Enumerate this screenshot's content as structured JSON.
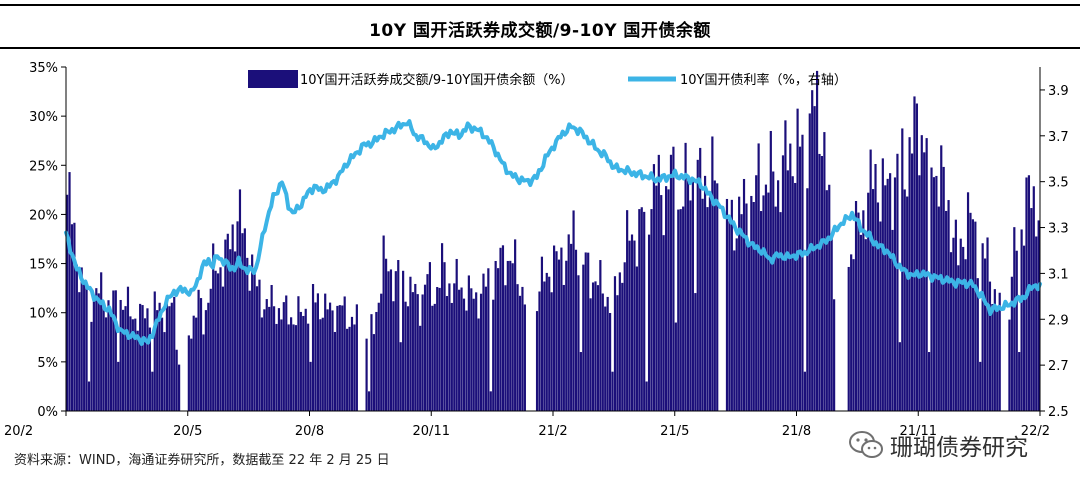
{
  "title": "10Y 国开活跃券成交额/9-10Y 国开债余额",
  "source_note": "资料来源：WIND，海通证券研究所，数据截至 22 年 2 月 25 日",
  "watermark": "珊瑚债券研究",
  "colors": {
    "bar": "#1b0f7a",
    "line": "#3cb4e6"
  },
  "chart_data": {
    "type": "bar+line",
    "title": "10Y 国开活跃券成交额/9-10Y 国开债余额",
    "x_ticks": [
      "20/2",
      "20/5",
      "20/8",
      "20/11",
      "21/2",
      "21/5",
      "21/8",
      "21/11",
      "22/2"
    ],
    "y_left": {
      "ticks": [
        "0%",
        "5%",
        "10%",
        "15%",
        "20%",
        "25%",
        "30%",
        "35%"
      ],
      "range": [
        0,
        35
      ]
    },
    "y_right": {
      "ticks": [
        "2.5",
        "2.7",
        "2.9",
        "3.1",
        "3.3",
        "3.5",
        "3.7",
        "3.9"
      ],
      "range": [
        2.5,
        4.0
      ]
    },
    "legend": {
      "bar": "10Y国开活跃券成交额/9-10Y国开债余额（%）",
      "line": "10Y国开债利率（%，右轴）"
    },
    "bar_series": {
      "name": "10Y国开活跃券成交额/9-10Y国开债余额（%）",
      "axis": "left",
      "knots": [
        [
          0,
          22
        ],
        [
          3,
          18
        ],
        [
          6,
          13
        ],
        [
          10,
          11.5
        ],
        [
          14,
          12
        ],
        [
          18,
          10.5
        ],
        [
          22,
          11.5
        ],
        [
          26,
          10
        ],
        [
          30,
          9.5
        ],
        [
          35,
          10.5
        ],
        [
          40,
          10
        ],
        [
          44,
          10.5
        ],
        [
          46,
          5
        ],
        [
          48,
          2
        ],
        [
          50,
          8
        ],
        [
          54,
          11
        ],
        [
          56,
          9
        ],
        [
          58,
          12
        ],
        [
          60,
          14
        ],
        [
          63,
          15
        ],
        [
          66,
          16
        ],
        [
          68,
          18
        ],
        [
          70,
          21
        ],
        [
          72,
          18
        ],
        [
          74,
          16
        ],
        [
          76,
          15
        ],
        [
          78,
          12
        ],
        [
          82,
          11
        ],
        [
          86,
          10.5
        ],
        [
          90,
          10
        ],
        [
          94,
          9.5
        ],
        [
          97,
          10
        ],
        [
          100,
          11.5
        ],
        [
          104,
          11
        ],
        [
          108,
          10
        ],
        [
          112,
          10.5
        ],
        [
          116,
          9.5
        ],
        [
          120,
          9
        ],
        [
          124,
          8
        ],
        [
          126,
          8.5
        ],
        [
          128,
          12
        ],
        [
          130,
          15
        ],
        [
          134,
          14
        ],
        [
          138,
          13
        ],
        [
          142,
          12
        ],
        [
          145,
          11
        ],
        [
          148,
          13.5
        ],
        [
          150,
          12
        ],
        [
          152,
          12.5
        ],
        [
          154,
          14.5
        ],
        [
          156,
          13.5
        ],
        [
          158,
          12.5
        ],
        [
          161,
          13
        ],
        [
          164,
          12
        ],
        [
          167,
          11.5
        ],
        [
          170,
          12
        ],
        [
          173,
          13
        ],
        [
          176,
          14
        ],
        [
          180,
          16
        ],
        [
          184,
          14.5
        ],
        [
          188,
          12
        ],
        [
          192,
          11
        ],
        [
          195,
          13
        ],
        [
          198,
          14.5
        ],
        [
          201,
          15
        ],
        [
          204,
          16
        ],
        [
          206,
          16
        ],
        [
          208,
          18
        ],
        [
          210,
          17
        ],
        [
          212,
          15
        ],
        [
          215,
          14
        ],
        [
          218,
          13
        ],
        [
          221,
          12
        ],
        [
          224,
          11
        ],
        [
          227,
          14
        ],
        [
          230,
          17
        ],
        [
          233,
          18
        ],
        [
          236,
          19
        ],
        [
          239,
          22
        ],
        [
          242,
          23
        ],
        [
          246,
          22
        ],
        [
          248,
          24
        ],
        [
          252,
          21
        ],
        [
          256,
          24
        ],
        [
          260,
          23
        ],
        [
          264,
          24
        ],
        [
          268,
          22
        ],
        [
          272,
          19
        ],
        [
          276,
          20
        ],
        [
          280,
          21
        ],
        [
          284,
          23
        ],
        [
          288,
          24
        ],
        [
          291,
          23
        ],
        [
          294,
          24.5
        ],
        [
          298,
          27
        ],
        [
          301,
          26
        ],
        [
          304,
          29
        ],
        [
          307,
          30.5
        ],
        [
          310,
          30
        ],
        [
          312,
          23
        ],
        [
          315,
          14
        ],
        [
          318,
          12
        ],
        [
          320,
          15
        ],
        [
          324,
          18
        ],
        [
          328,
          21
        ],
        [
          332,
          24
        ],
        [
          336,
          22
        ],
        [
          340,
          24
        ],
        [
          344,
          25
        ],
        [
          348,
          28
        ],
        [
          350,
          29
        ],
        [
          354,
          27
        ],
        [
          358,
          24
        ],
        [
          362,
          21
        ],
        [
          366,
          15
        ],
        [
          368,
          18
        ],
        [
          370,
          20
        ],
        [
          374,
          17
        ],
        [
          378,
          15
        ],
        [
          381,
          12
        ],
        [
          384,
          10
        ],
        [
          385,
          2
        ],
        [
          388,
          14
        ],
        [
          391,
          18
        ],
        [
          394,
          21
        ],
        [
          397,
          22
        ],
        [
          400,
          20
        ]
      ],
      "gaps": [
        [
          47,
          49
        ],
        [
          120,
          122
        ],
        [
          189,
          192
        ],
        [
          268,
          270
        ],
        [
          316,
          320
        ],
        [
          384,
          386
        ]
      ],
      "dips": [
        [
          9,
          3
        ],
        [
          21,
          5
        ],
        [
          35,
          4
        ],
        [
          100,
          5
        ],
        [
          124,
          2
        ],
        [
          137,
          7
        ],
        [
          174,
          2
        ],
        [
          211,
          6
        ],
        [
          224,
          4
        ],
        [
          238,
          3
        ],
        [
          250,
          9
        ],
        [
          258,
          12
        ],
        [
          303,
          4
        ],
        [
          342,
          7
        ],
        [
          354,
          6
        ],
        [
          375,
          5
        ],
        [
          391,
          6
        ]
      ]
    },
    "line_series": {
      "name": "10Y国开债利率（%，右轴）",
      "axis": "right",
      "knots": [
        [
          0,
          3.27
        ],
        [
          5,
          3.12
        ],
        [
          10,
          3.04
        ],
        [
          15,
          2.98
        ],
        [
          20,
          2.94
        ],
        [
          25,
          2.85
        ],
        [
          30,
          2.83
        ],
        [
          35,
          2.81
        ],
        [
          38,
          2.8
        ],
        [
          42,
          2.88
        ],
        [
          46,
          2.97
        ],
        [
          50,
          3.02
        ],
        [
          55,
          3.03
        ],
        [
          58,
          3.01
        ],
        [
          60,
          3.05
        ],
        [
          64,
          3.14
        ],
        [
          66,
          3.16
        ],
        [
          68,
          3.13
        ],
        [
          70,
          3.18
        ],
        [
          73,
          3.15
        ],
        [
          76,
          3.13
        ],
        [
          78,
          3.12
        ],
        [
          80,
          3.15
        ],
        [
          84,
          3.11
        ],
        [
          88,
          3.12
        ],
        [
          92,
          3.3
        ],
        [
          96,
          3.43
        ],
        [
          100,
          3.5
        ],
        [
          103,
          3.4
        ],
        [
          105,
          3.36
        ],
        [
          108,
          3.39
        ],
        [
          112,
          3.45
        ],
        [
          115,
          3.48
        ],
        [
          118,
          3.46
        ],
        [
          122,
          3.48
        ],
        [
          126,
          3.52
        ],
        [
          130,
          3.58
        ],
        [
          134,
          3.62
        ],
        [
          138,
          3.66
        ],
        [
          142,
          3.67
        ],
        [
          146,
          3.7
        ],
        [
          150,
          3.72
        ],
        [
          154,
          3.74
        ],
        [
          158,
          3.76
        ],
        [
          162,
          3.7
        ],
        [
          166,
          3.68
        ],
        [
          170,
          3.64
        ],
        [
          174,
          3.68
        ],
        [
          178,
          3.72
        ],
        [
          182,
          3.7
        ],
        [
          186,
          3.74
        ],
        [
          190,
          3.73
        ],
        [
          194,
          3.7
        ],
        [
          198,
          3.65
        ],
        [
          202,
          3.58
        ],
        [
          206,
          3.53
        ],
        [
          210,
          3.51
        ],
        [
          214,
          3.5
        ],
        [
          218,
          3.52
        ],
        [
          222,
          3.6
        ],
        [
          226,
          3.66
        ],
        [
          230,
          3.71
        ],
        [
          234,
          3.74
        ],
        [
          238,
          3.72
        ],
        [
          242,
          3.68
        ],
        [
          246,
          3.64
        ],
        [
          250,
          3.61
        ],
        [
          254,
          3.56
        ],
        [
          258,
          3.55
        ],
        [
          262,
          3.54
        ],
        [
          266,
          3.53
        ],
        [
          270,
          3.52
        ],
        [
          274,
          3.51
        ],
        [
          278,
          3.52
        ],
        [
          282,
          3.53
        ],
        [
          286,
          3.52
        ],
        [
          290,
          3.51
        ],
        [
          294,
          3.49
        ],
        [
          298,
          3.44
        ],
        [
          302,
          3.4
        ],
        [
          306,
          3.35
        ],
        [
          310,
          3.3
        ],
        [
          314,
          3.26
        ],
        [
          318,
          3.22
        ],
        [
          322,
          3.2
        ],
        [
          326,
          3.16
        ],
        [
          330,
          3.18
        ],
        [
          334,
          3.17
        ],
        [
          338,
          3.18
        ],
        [
          342,
          3.19
        ],
        [
          346,
          3.21
        ],
        [
          350,
          3.23
        ],
        [
          354,
          3.26
        ],
        [
          358,
          3.31
        ],
        [
          362,
          3.34
        ],
        [
          364,
          3.36
        ],
        [
          368,
          3.3
        ],
        [
          372,
          3.26
        ],
        [
          376,
          3.22
        ],
        [
          380,
          3.2
        ],
        [
          384,
          3.15
        ],
        [
          388,
          3.11
        ],
        [
          392,
          3.09
        ],
        [
          396,
          3.1
        ],
        [
          400,
          3.09
        ],
        [
          404,
          3.08
        ],
        [
          408,
          3.07
        ],
        [
          412,
          3.06
        ],
        [
          416,
          3.06
        ],
        [
          420,
          3.05
        ],
        [
          424,
          3.0
        ],
        [
          428,
          2.94
        ],
        [
          432,
          2.95
        ],
        [
          436,
          2.96
        ],
        [
          440,
          2.98
        ],
        [
          444,
          3.0
        ],
        [
          448,
          3.05
        ],
        [
          451,
          3.04
        ]
      ]
    }
  }
}
